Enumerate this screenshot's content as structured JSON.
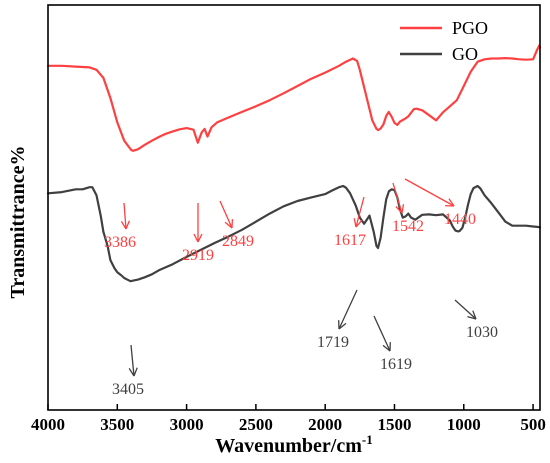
{
  "chart_data": {
    "type": "line",
    "xlabel": "Wavenumber/cm",
    "xlabel_sup": "-1",
    "ylabel": "Transmittrance%",
    "xlim": [
      4000,
      450
    ],
    "x_reversed": true,
    "x_ticks": [
      "4000",
      "3500",
      "3000",
      "2500",
      "2000",
      "1500",
      "1000",
      "500"
    ],
    "y_ticks_labeled": false,
    "y_relative_range": [
      0,
      100
    ],
    "grid": false,
    "legend": {
      "placement": "top-right"
    },
    "series": [
      {
        "name": "PGO",
        "color": "#ff4040",
        "x": [
          4000,
          3900,
          3800,
          3700,
          3650,
          3600,
          3550,
          3500,
          3450,
          3400,
          3386,
          3350,
          3300,
          3250,
          3200,
          3150,
          3100,
          3050,
          3000,
          2950,
          2919,
          2890,
          2870,
          2849,
          2820,
          2780,
          2700,
          2600,
          2500,
          2400,
          2300,
          2200,
          2100,
          2000,
          1900,
          1850,
          1800,
          1770,
          1750,
          1700,
          1660,
          1630,
          1617,
          1600,
          1580,
          1560,
          1542,
          1520,
          1500,
          1480,
          1460,
          1440,
          1420,
          1400,
          1380,
          1360,
          1340,
          1300,
          1250,
          1200,
          1150,
          1100,
          1050,
          1000,
          950,
          900,
          850,
          800,
          750,
          700,
          650,
          600,
          550,
          500,
          470,
          455,
          450
        ],
        "y": [
          85,
          85,
          84.8,
          84.6,
          84,
          82,
          77,
          71,
          66.5,
          64.2,
          64,
          64.4,
          65.5,
          66.5,
          67.4,
          68.2,
          68.8,
          69.3,
          69.6,
          69.2,
          66,
          68.6,
          69.4,
          67.5,
          69.8,
          71,
          72.2,
          73.6,
          75,
          76.5,
          78.2,
          80,
          81.8,
          83.3,
          85,
          86,
          86.8,
          86.2,
          84,
          77,
          71.5,
          69.4,
          69.1,
          69.5,
          70.5,
          72.6,
          73.6,
          72.4,
          70.9,
          70.4,
          71.2,
          71.6,
          72,
          72.5,
          73.4,
          74.3,
          74.4,
          74,
          72.8,
          71.5,
          73.5,
          75,
          76.5,
          80,
          83.5,
          86,
          86.6,
          86.8,
          86.8,
          86.9,
          86.8,
          86.6,
          86.5,
          86.6,
          89,
          90,
          89.5
        ]
      },
      {
        "name": "GO",
        "color": "#404040",
        "x": [
          4000,
          3900,
          3800,
          3750,
          3700,
          3680,
          3650,
          3620,
          3600,
          3570,
          3550,
          3520,
          3500,
          3470,
          3450,
          3405,
          3380,
          3350,
          3300,
          3250,
          3200,
          3100,
          3000,
          2900,
          2800,
          2700,
          2600,
          2500,
          2400,
          2300,
          2200,
          2100,
          2000,
          1950,
          1900,
          1870,
          1850,
          1820,
          1800,
          1780,
          1750,
          1719,
          1700,
          1680,
          1650,
          1630,
          1619,
          1600,
          1580,
          1560,
          1540,
          1520,
          1500,
          1480,
          1460,
          1440,
          1420,
          1400,
          1380,
          1350,
          1300,
          1250,
          1200,
          1150,
          1100,
          1080,
          1060,
          1040,
          1030,
          1010,
          990,
          970,
          950,
          930,
          900,
          880,
          850,
          800,
          750,
          700,
          650,
          600,
          550,
          500,
          470,
          450
        ],
        "y": [
          53.5,
          53.8,
          54.5,
          54.5,
          55,
          55,
          53,
          48,
          44,
          40.5,
          37,
          35,
          34,
          33.2,
          32.6,
          31.8,
          32,
          32.2,
          32.8,
          33.5,
          34.5,
          36,
          37.8,
          39.5,
          41.2,
          42.8,
          44.5,
          46.5,
          48.5,
          50.3,
          51.6,
          52.5,
          53.3,
          54.2,
          55,
          55.3,
          54.9,
          53.5,
          52,
          50.5,
          47.5,
          46,
          47,
          48,
          44,
          40.5,
          40,
          42.5,
          47.5,
          52,
          54,
          54.5,
          54.3,
          52.5,
          49.5,
          47.5,
          47.8,
          48.5,
          47.5,
          47,
          48.2,
          48.3,
          48.1,
          48.3,
          46.8,
          45.3,
          44.3,
          44.1,
          44.2,
          45,
          47.5,
          50.6,
          53.3,
          54.8,
          55.3,
          54.7,
          53,
          51,
          48.8,
          46.5,
          45.5,
          45.5,
          45.5,
          45.3,
          45.2,
          45.1
        ]
      }
    ],
    "annotations": [
      {
        "label": "3386",
        "series": "PGO",
        "x": 3386
      },
      {
        "label": "2919",
        "series": "PGO",
        "x": 2919
      },
      {
        "label": "2849",
        "series": "PGO",
        "x": 2849
      },
      {
        "label": "1617",
        "series": "PGO",
        "x": 1617
      },
      {
        "label": "1542",
        "series": "PGO",
        "x": 1542
      },
      {
        "label": "1440",
        "series": "PGO",
        "x": 1440
      },
      {
        "label": "1719",
        "series": "GO",
        "x": 1719
      },
      {
        "label": "1619",
        "series": "GO",
        "x": 1619
      },
      {
        "label": "1030",
        "series": "GO",
        "x": 1030
      },
      {
        "label": "3405",
        "series": "GO",
        "x": 3405
      }
    ]
  }
}
